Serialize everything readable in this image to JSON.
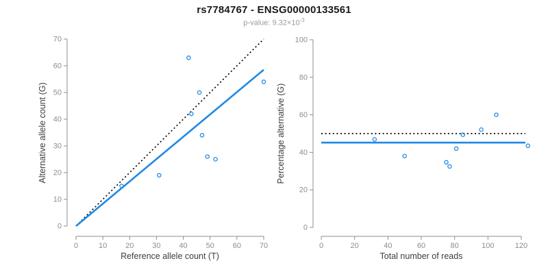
{
  "header": {
    "title": "rs7784767 - ENSG00000133561",
    "pvalue_label": "p-value: ",
    "pvalue_base": "9.32×10",
    "pvalue_exponent": "-3"
  },
  "colors": {
    "accent_blue": "#1E88E5",
    "dotted_line_black": "#000000",
    "axis_gray": "#8c8c8c",
    "axis_title_gray": "#3d3d3d",
    "subtitle_gray": "#9b9b9b"
  },
  "chart_data": [
    {
      "type": "scatter",
      "panel": "left",
      "xlabel": "Reference allele count (T)",
      "ylabel": "Alternative allele count (G)",
      "xlim": [
        0,
        70
      ],
      "ylim": [
        0,
        70
      ],
      "xticks": [
        0,
        10,
        20,
        30,
        40,
        50,
        60,
        70
      ],
      "yticks": [
        0,
        10,
        20,
        30,
        40,
        50,
        60,
        70
      ],
      "grid": false,
      "legend": "none",
      "marker": "open-circle",
      "points": [
        [
          17,
          15
        ],
        [
          31,
          19
        ],
        [
          42,
          63
        ],
        [
          43,
          42
        ],
        [
          46,
          50
        ],
        [
          47,
          34
        ],
        [
          49,
          26
        ],
        [
          52,
          25
        ],
        [
          70,
          54
        ]
      ],
      "lines": [
        {
          "name": "identity-line",
          "style": "dotted",
          "color": "#000000",
          "from": [
            0,
            0
          ],
          "to": [
            70,
            70
          ]
        },
        {
          "name": "fit-line",
          "style": "solid",
          "color": "#1E88E5",
          "from": [
            0,
            0
          ],
          "to": [
            70,
            58.5
          ]
        }
      ]
    },
    {
      "type": "scatter",
      "panel": "right",
      "xlabel": "Total number of reads",
      "ylabel": "Percentage alternative (G)",
      "xlim": [
        0,
        120
      ],
      "ylim": [
        0,
        100
      ],
      "xticks": [
        0,
        20,
        40,
        60,
        80,
        100,
        120
      ],
      "yticks": [
        0,
        20,
        40,
        60,
        80,
        100
      ],
      "grid": false,
      "legend": "none",
      "marker": "open-circle",
      "points": [
        [
          32,
          46.9
        ],
        [
          50,
          38
        ],
        [
          75,
          34.7
        ],
        [
          77,
          32.5
        ],
        [
          81,
          42
        ],
        [
          85,
          49.4
        ],
        [
          96,
          52.1
        ],
        [
          105,
          60
        ],
        [
          124,
          43.5
        ]
      ],
      "lines": [
        {
          "name": "expected-50pct-line",
          "style": "dotted",
          "color": "#000000",
          "y": 50
        },
        {
          "name": "mean-percentage-line",
          "style": "solid",
          "color": "#1E88E5",
          "y": 45.2
        }
      ]
    }
  ]
}
